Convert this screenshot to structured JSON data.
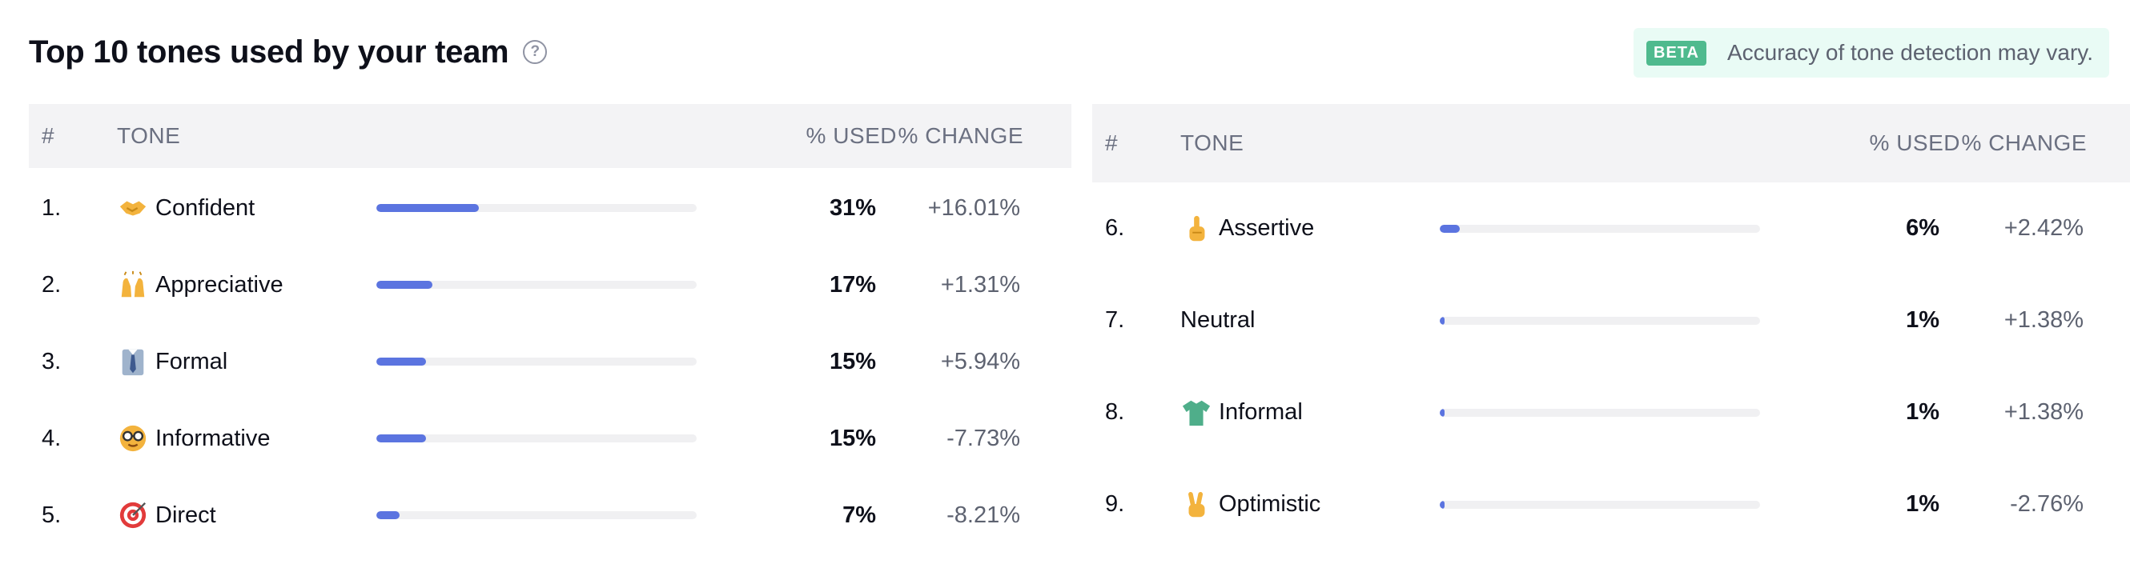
{
  "header": {
    "title": "Top 10 tones used by your team",
    "help_icon": "help-circle-icon",
    "badge": "BETA",
    "notice": "Accuracy of tone detection may vary."
  },
  "columns": {
    "num": "#",
    "tone": "TONE",
    "used": "% USED",
    "change": "% CHANGE"
  },
  "colors": {
    "bar_fill": "#5b74e0",
    "bar_track": "#f0f0f2",
    "badge_bg": "#4fba8e",
    "notice_bg": "#e9fbf5"
  },
  "left_table": {
    "rows": [
      {
        "num": "1.",
        "icon": "handshake-icon",
        "tone": "Confident",
        "used_pct": 31,
        "used": "31%",
        "change": "+16.01%"
      },
      {
        "num": "2.",
        "icon": "raising-hands-icon",
        "tone": "Appreciative",
        "used_pct": 17,
        "used": "17%",
        "change": "+1.31%"
      },
      {
        "num": "3.",
        "icon": "necktie-icon",
        "tone": "Formal",
        "used_pct": 15,
        "used": "15%",
        "change": "+5.94%"
      },
      {
        "num": "4.",
        "icon": "nerd-face-icon",
        "tone": "Informative",
        "used_pct": 15,
        "used": "15%",
        "change": "-7.73%"
      },
      {
        "num": "5.",
        "icon": "direct-hit-icon",
        "tone": "Direct",
        "used_pct": 7,
        "used": "7%",
        "change": "-8.21%"
      }
    ]
  },
  "right_table": {
    "rows": [
      {
        "num": "6.",
        "icon": "index-pointing-up-icon",
        "tone": "Assertive",
        "used_pct": 6,
        "used": "6%",
        "change": "+2.42%"
      },
      {
        "num": "7.",
        "icon": "",
        "tone": "Neutral",
        "used_pct": 1,
        "used": "1%",
        "change": "+1.38%"
      },
      {
        "num": "8.",
        "icon": "t-shirt-icon",
        "tone": "Informal",
        "used_pct": 1,
        "used": "1%",
        "change": "+1.38%"
      },
      {
        "num": "9.",
        "icon": "victory-hand-icon",
        "tone": "Optimistic",
        "used_pct": 1,
        "used": "1%",
        "change": "-2.76%"
      }
    ]
  }
}
